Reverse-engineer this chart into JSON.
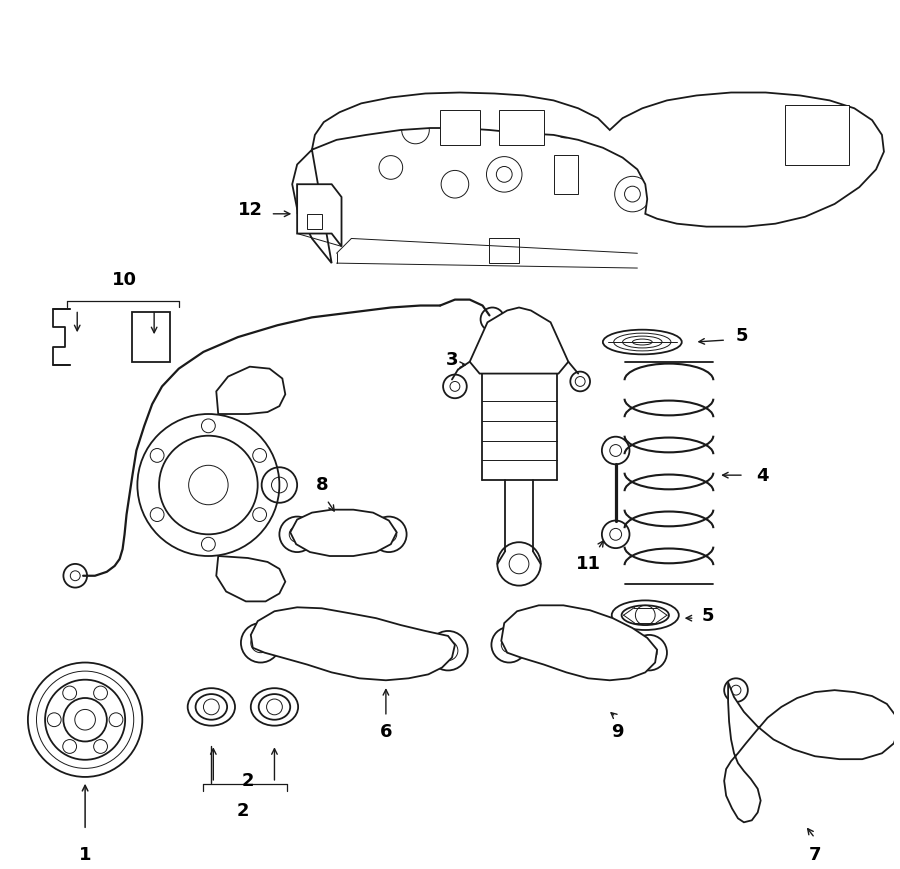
{
  "background_color": "#ffffff",
  "line_color": "#1a1a1a",
  "lw_main": 1.3,
  "lw_thin": 0.7,
  "lw_thick": 1.8,
  "figsize": [
    9.0,
    8.7
  ],
  "dpi": 100
}
